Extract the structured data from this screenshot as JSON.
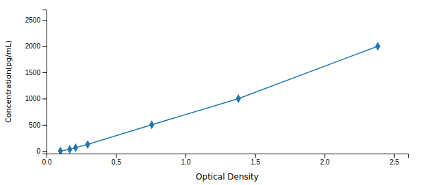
{
  "chart_data": {
    "type": "line",
    "x": [
      0.1,
      0.167,
      0.209,
      0.296,
      0.757,
      1.38,
      2.383
    ],
    "values": [
      0,
      31.25,
      62.5,
      125,
      500,
      1000,
      2000
    ],
    "xlabel": "Optical Density",
    "ylabel": "Concentration(pg/mL)",
    "xlim": [
      0.0,
      2.6
    ],
    "ylim": [
      -50,
      2700
    ],
    "xticks": [
      {
        "value": 0,
        "label": "0.0"
      },
      0.5,
      {
        "value": 1,
        "label": "1.0"
      },
      1.5,
      {
        "value": 2,
        "label": "2.0"
      },
      2.5
    ],
    "yticks": [
      0,
      500,
      1000,
      1500,
      2000,
      2500
    ],
    "marker": "diamond",
    "line_style": "solid"
  }
}
